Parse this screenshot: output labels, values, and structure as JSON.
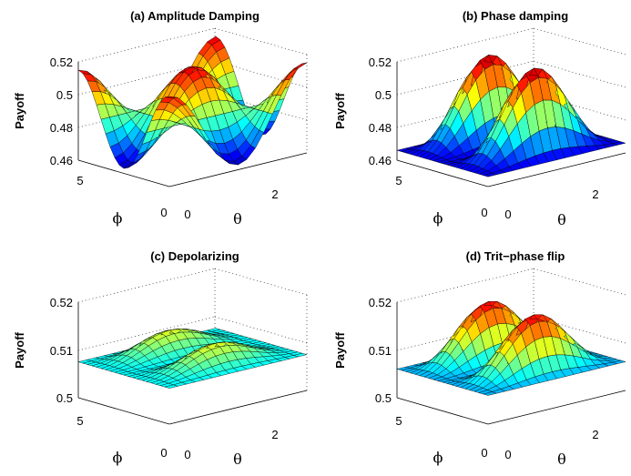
{
  "chart_data": [
    {
      "type": "surface3d",
      "title": "(a) Amplitude Damping",
      "zlabel": "Payoff",
      "xlabel": "θ",
      "ylabel": "ϕ",
      "x_ticks": [
        "0",
        "2"
      ],
      "y_ticks": [
        "0",
        "5"
      ],
      "z_ticks": [
        "0.46",
        "0.48",
        "0.5",
        "0.52"
      ],
      "zlim": [
        0.46,
        0.52
      ],
      "xlim": [
        0,
        3.14
      ],
      "ylim": [
        0,
        6.28
      ],
      "colormap": "jet",
      "surface": {
        "form": "amplitude",
        "base": 0.489,
        "amp": 0.026
      }
    },
    {
      "type": "surface3d",
      "title": "(b) Phase damping",
      "zlabel": "Payoff",
      "xlabel": "θ",
      "ylabel": "ϕ",
      "x_ticks": [
        "0",
        "2"
      ],
      "y_ticks": [
        "0",
        "5"
      ],
      "z_ticks": [
        "0.46",
        "0.48",
        "0.5",
        "0.52"
      ],
      "zlim": [
        0.46,
        0.52
      ],
      "xlim": [
        0,
        3.14
      ],
      "ylim": [
        0,
        6.28
      ],
      "colormap": "jet",
      "surface": {
        "form": "twin_peaks",
        "base": 0.466,
        "amp": 0.052
      }
    },
    {
      "type": "surface3d",
      "title": "(c) Depolarizing",
      "zlabel": "Payoff",
      "xlabel": "θ",
      "ylabel": "ϕ",
      "x_ticks": [
        "0",
        "2"
      ],
      "y_ticks": [
        "0",
        "5"
      ],
      "z_ticks": [
        "0.5",
        "0.51",
        "0.52"
      ],
      "zlim": [
        0.5,
        0.52
      ],
      "xlim": [
        0,
        3.14
      ],
      "ylim": [
        0,
        6.28
      ],
      "colormap": "jet",
      "surface": {
        "form": "twin_peaks",
        "base": 0.5075,
        "amp": 0.0045
      }
    },
    {
      "type": "surface3d",
      "title": "(d) Trit−phase flip",
      "zlabel": "Payoff",
      "xlabel": "θ",
      "ylabel": "ϕ",
      "x_ticks": [
        "0",
        "2"
      ],
      "y_ticks": [
        "0",
        "5"
      ],
      "z_ticks": [
        "0.5",
        "0.51",
        "0.52"
      ],
      "zlim": [
        0.5,
        0.52
      ],
      "xlim": [
        0,
        3.14
      ],
      "ylim": [
        0,
        6.28
      ],
      "colormap": "jet",
      "surface": {
        "form": "twin_peaks",
        "base": 0.506,
        "amp": 0.012
      }
    }
  ]
}
